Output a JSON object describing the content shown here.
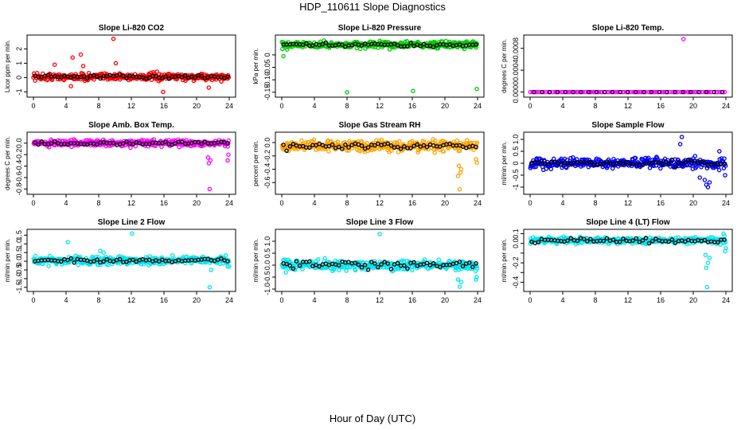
{
  "title": "HDP_110611  Slope Diagnostics",
  "xlabel": "Hour of Day (UTC)",
  "colors": {
    "overlay": "#000000",
    "frame": "#000000"
  },
  "chart_data": [
    {
      "type": "scatter",
      "title": "Slope Li-820 CO2",
      "ylabel": "Licor ppm per min.",
      "color": "#ff0000",
      "xlim": [
        0,
        24
      ],
      "ylim": [
        -1.2,
        2.8
      ],
      "xticks": [
        "0",
        "4",
        "8",
        "12",
        "16",
        "20",
        "24"
      ],
      "yticks": [
        -1,
        0,
        1,
        2
      ],
      "ytick_labels": [
        "-1",
        "0",
        "1",
        "2"
      ],
      "center": 0.05,
      "spread": 0.22,
      "black_spread": 0.12,
      "outliers": [
        [
          9.8,
          2.7
        ],
        [
          5.8,
          1.6
        ],
        [
          4.8,
          1.4
        ],
        [
          2.6,
          0.9
        ],
        [
          6.1,
          0.8
        ],
        [
          10.1,
          1.0
        ],
        [
          15.9,
          -1.0
        ],
        [
          4.6,
          -0.6
        ],
        [
          21.5,
          -0.7
        ]
      ]
    },
    {
      "type": "scatter",
      "title": "Slope Li-820 Pressure",
      "ylabel": "kPa per min.",
      "color": "#00cc00",
      "xlim": [
        0,
        24
      ],
      "ylim": [
        -0.16,
        0.07
      ],
      "xticks": [
        "0",
        "4",
        "8",
        "12",
        "16",
        "20",
        "24"
      ],
      "yticks": [
        -0.15,
        -0.1,
        -0.05,
        0
      ],
      "ytick_labels": [
        "-0.15",
        "-0.10",
        "-0.05",
        "0"
      ],
      "center": 0.04,
      "spread": 0.012,
      "black_spread": 0.006,
      "outliers": [
        [
          8.0,
          -0.15
        ],
        [
          16.1,
          -0.145
        ],
        [
          23.9,
          -0.137
        ],
        [
          0.2,
          -0.005
        ]
      ]
    },
    {
      "type": "scatter",
      "title": "Slope Li-820 Temp.",
      "ylabel": "degrees C per min.",
      "color": "#ff00ff",
      "xlim": [
        0,
        24
      ],
      "ylim": [
        -5e-05,
        0.001
      ],
      "xticks": [
        "0",
        "4",
        "8",
        "12",
        "16",
        "20",
        "24"
      ],
      "yticks": [
        0,
        0.0004,
        0.0008
      ],
      "ytick_labels": [
        "0.0000",
        "0.0004",
        "0.0008"
      ],
      "center": 0,
      "spread": 0,
      "black_spread": 0,
      "sparse": true,
      "outliers": [
        [
          18.8,
          0.00097
        ]
      ]
    },
    {
      "type": "scatter",
      "title": "Slope Amb. Box Temp.",
      "ylabel": "degrees C per min.",
      "color": "#ff00ff",
      "xlim": [
        0,
        24
      ],
      "ylim": [
        -0.85,
        0.15
      ],
      "xticks": [
        "0",
        "4",
        "8",
        "12",
        "16",
        "20",
        "24"
      ],
      "yticks": [
        -0.8,
        -0.6,
        -0.4,
        -0.2,
        0
      ],
      "ytick_labels": [
        "-0.8",
        "-0.6",
        "-0.4",
        "-0.2",
        "0.0"
      ],
      "center": 0.0,
      "spread": 0.045,
      "black_spread": 0.025,
      "outliers": [
        [
          21.6,
          -0.8
        ],
        [
          21.5,
          -0.35
        ],
        [
          21.7,
          -0.3
        ],
        [
          21.4,
          -0.25
        ],
        [
          23.8,
          -0.3
        ],
        [
          23.9,
          -0.2
        ]
      ]
    },
    {
      "type": "scatter",
      "title": "Slope Gas Stream RH",
      "ylabel": "percent per min.",
      "color": "#ffa500",
      "xlim": [
        0,
        24
      ],
      "ylim": [
        -0.74,
        0.12
      ],
      "xticks": [
        "0",
        "4",
        "8",
        "12",
        "16",
        "20",
        "24"
      ],
      "yticks": [
        -0.6,
        -0.4,
        -0.2,
        0
      ],
      "ytick_labels": [
        "-0.6",
        "-0.4",
        "-0.2",
        "0.0"
      ],
      "center": -0.05,
      "spread": 0.07,
      "black_spread": 0.04,
      "outliers": [
        [
          21.8,
          -0.7
        ],
        [
          21.6,
          -0.5
        ],
        [
          21.9,
          -0.45
        ],
        [
          22.0,
          -0.4
        ],
        [
          21.7,
          -0.35
        ],
        [
          23.9,
          -0.3
        ],
        [
          23.8,
          -0.25
        ]
      ]
    },
    {
      "type": "scatter",
      "title": "Slope Sample Flow",
      "ylabel": "ml/min per min.",
      "color": "#0000ff",
      "xlim": [
        0,
        24
      ],
      "ylim": [
        -1.2,
        1.2
      ],
      "xticks": [
        "0",
        "4",
        "8",
        "12",
        "16",
        "20",
        "24"
      ],
      "yticks": [
        -1,
        -0.5,
        0,
        0.5,
        1
      ],
      "ytick_labels": [
        "-1",
        "-0.5",
        "0",
        "0.5",
        "1.0"
      ],
      "center": 0.0,
      "spread": 0.18,
      "black_spread": 0.1,
      "outliers": [
        [
          18.6,
          1.1
        ],
        [
          18.4,
          0.8
        ],
        [
          23.2,
          0.5
        ],
        [
          21.8,
          -1.0
        ],
        [
          21.6,
          -0.9
        ],
        [
          22.0,
          -0.8
        ],
        [
          21.4,
          -0.7
        ],
        [
          23.9,
          -0.5
        ],
        [
          20.8,
          -0.6
        ]
      ]
    },
    {
      "type": "scatter",
      "title": "Slope Line 2 Flow",
      "ylabel": "ml/min per min.",
      "color": "#00e5ee",
      "xlim": [
        0,
        24
      ],
      "ylim": [
        -1.6,
        1.7
      ],
      "xticks": [
        "0",
        "4",
        "8",
        "12",
        "16",
        "20",
        "24"
      ],
      "yticks": [
        -1.5,
        -1,
        -0.5,
        0,
        0.5,
        1,
        1.5
      ],
      "ytick_labels": [
        "-1.5",
        "-1.0",
        "-0.5",
        "0.0",
        "0.5",
        "1.0",
        "1.5"
      ],
      "center": 0.05,
      "spread": 0.2,
      "black_spread": 0.08,
      "outliers": [
        [
          12.1,
          1.6
        ],
        [
          4.2,
          1.1
        ],
        [
          8.2,
          0.6
        ],
        [
          8.6,
          0.5
        ],
        [
          21.6,
          -1.5
        ],
        [
          21.8,
          -0.5
        ],
        [
          24.0,
          -0.3
        ],
        [
          23.8,
          -0.3
        ]
      ]
    },
    {
      "type": "scatter",
      "title": "Slope Line 3 Flow",
      "ylabel": "ml/min per min.",
      "color": "#00e5ee",
      "xlim": [
        0,
        24
      ],
      "ylim": [
        -1.0,
        1.4
      ],
      "xticks": [
        "0",
        "4",
        "8",
        "12",
        "16",
        "20",
        "24"
      ],
      "yticks": [
        -1,
        -0.5,
        0,
        0.5,
        1
      ],
      "ytick_labels": [
        "-1.0",
        "-0.5",
        "0.0",
        "0.5",
        "1.0"
      ],
      "center": 0.0,
      "spread": 0.18,
      "black_spread": 0.12,
      "outliers": [
        [
          12.0,
          1.3
        ],
        [
          21.8,
          -0.9
        ],
        [
          22.0,
          -0.7
        ],
        [
          21.6,
          -0.6
        ],
        [
          23.8,
          -0.6
        ],
        [
          23.9,
          -0.5
        ],
        [
          0.5,
          -0.3
        ]
      ]
    },
    {
      "type": "scatter",
      "title": "Slope Line 4 (LT) Flow",
      "ylabel": "ml/min per min.",
      "color": "#00e5ee",
      "xlim": [
        0,
        24
      ],
      "ylim": [
        -0.47,
        0.12
      ],
      "xticks": [
        "0",
        "4",
        "8",
        "12",
        "16",
        "20",
        "24"
      ],
      "yticks": [
        -0.4,
        -0.3,
        -0.2,
        -0.1,
        0,
        0.1
      ],
      "ytick_labels": [
        "-0.4",
        "",
        "-0.2",
        "",
        "0.0",
        "0.1"
      ],
      "center": 0.03,
      "spread": 0.028,
      "black_spread": 0.018,
      "outliers": [
        [
          21.7,
          -0.45
        ],
        [
          21.6,
          -0.25
        ],
        [
          21.8,
          -0.2
        ],
        [
          22.0,
          -0.15
        ],
        [
          21.5,
          -0.12
        ],
        [
          23.7,
          0.1
        ],
        [
          23.9,
          -0.08
        ],
        [
          24.0,
          -0.05
        ]
      ]
    }
  ]
}
